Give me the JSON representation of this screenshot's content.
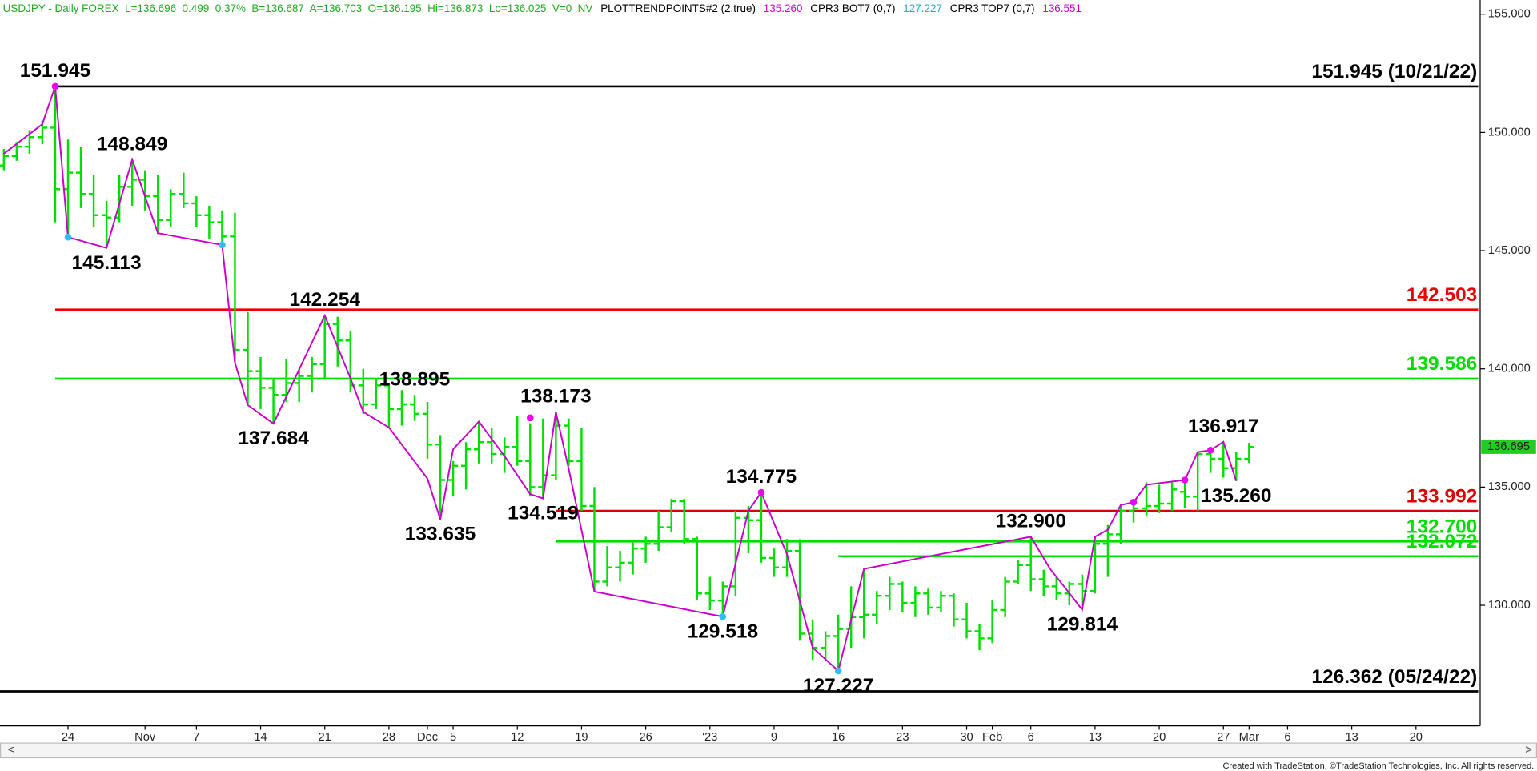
{
  "chart_data": {
    "type": "ohlc",
    "status": [
      {
        "text": "USDJPY - Daily FOREX  L=136.696  0.499  0.37%  B=136.687  A=136.703  O=136.195  Hi=136.873  Lo=136.025  V=0  NV",
        "color": "#22aa22"
      },
      {
        "text": "PLOTTRENDPOINTS#2 (2,true)",
        "color": "#000000"
      },
      {
        "text": "135.260",
        "color": "#cc00cc"
      },
      {
        "text": "CPR3 BOT7 (0,7)",
        "color": "#000000"
      },
      {
        "text": "127.227",
        "color": "#22aacc"
      },
      {
        "text": "CPR3 TOP7 (0,7)",
        "color": "#000000"
      },
      {
        "text": "136.551",
        "color": "#cc00cc"
      }
    ],
    "footer": "Created with TradeStation. ©TradeStation Technologies, Inc. All rights reserved.",
    "bar_color": "#00e000",
    "bars": {
      "open": [
        148.6,
        149.0,
        149.4,
        149.8,
        150.2,
        147.6,
        148.3,
        147.4,
        146.5,
        146.4,
        147.7,
        148.0,
        147.3,
        146.3,
        147.4,
        147.0,
        146.5,
        146.2,
        145.6,
        140.8,
        139.9,
        139.2,
        138.9,
        139.4,
        139.7,
        140.2,
        141.9,
        141.2,
        139.3,
        138.5,
        139.3,
        138.3,
        138.5,
        138.1,
        136.8,
        135.3,
        135.9,
        136.6,
        136.9,
        136.4,
        136.7,
        136.1,
        135.0,
        135.5,
        137.6,
        136.1,
        134.2,
        131.0,
        131.6,
        131.8,
        132.4,
        132.6,
        133.3,
        134.4,
        132.8,
        130.5,
        130.2,
        130.8,
        133.7,
        133.6,
        132.0,
        131.6,
        132.3,
        128.8,
        128.2,
        128.7,
        129.0,
        129.5,
        129.6,
        130.4,
        130.9,
        130.1,
        130.5,
        129.9,
        130.4,
        129.4,
        128.9,
        128.6,
        129.8,
        131.0,
        131.7,
        131.1,
        130.8,
        130.5,
        130.9,
        130.6,
        132.6,
        133.0,
        134.0,
        134.1,
        134.2,
        134.3,
        134.8,
        134.6,
        136.4,
        136.2,
        135.8,
        136.195
      ],
      "high": [
        149.3,
        149.6,
        150.1,
        150.5,
        151.945,
        149.7,
        149.4,
        148.2,
        147.1,
        148.2,
        148.849,
        148.4,
        148.2,
        147.6,
        148.3,
        147.3,
        146.9,
        146.7,
        146.6,
        142.4,
        140.5,
        139.6,
        140.4,
        140.0,
        140.5,
        142.254,
        142.2,
        141.6,
        140.0,
        139.6,
        139.4,
        139.1,
        138.895,
        138.6,
        137.2,
        136.1,
        136.9,
        137.8,
        137.5,
        137.1,
        138.0,
        137.7,
        137.9,
        138.173,
        137.9,
        137.5,
        135.0,
        132.5,
        132.3,
        132.7,
        132.9,
        134.0,
        134.5,
        134.5,
        132.9,
        131.2,
        131.0,
        134.0,
        134.2,
        134.775,
        132.4,
        132.8,
        132.8,
        129.4,
        128.9,
        129.6,
        130.8,
        131.54,
        130.6,
        131.2,
        131.0,
        130.8,
        130.7,
        130.6,
        130.5,
        130.1,
        129.2,
        130.2,
        131.2,
        131.9,
        132.9,
        131.5,
        131.2,
        131.0,
        131.3,
        132.9,
        133.4,
        134.2,
        134.4,
        135.2,
        135.1,
        135.2,
        135.3,
        136.5,
        136.6,
        136.917,
        136.5,
        136.873
      ],
      "low": [
        148.4,
        148.8,
        149.1,
        149.5,
        146.2,
        145.6,
        146.8,
        146.0,
        145.113,
        146.2,
        146.9,
        146.7,
        145.7,
        146.0,
        146.8,
        146.0,
        145.5,
        145.3,
        140.3,
        138.5,
        138.3,
        137.684,
        138.6,
        138.6,
        139.0,
        139.6,
        140.1,
        139.0,
        138.1,
        138.3,
        137.5,
        137.6,
        137.8,
        136.2,
        133.635,
        134.6,
        134.9,
        136.0,
        136.0,
        135.6,
        135.9,
        134.6,
        134.519,
        135.3,
        135.9,
        134.0,
        130.6,
        130.8,
        131.0,
        131.3,
        131.8,
        132.3,
        133.1,
        132.6,
        130.2,
        129.8,
        129.518,
        130.4,
        132.2,
        131.8,
        131.2,
        131.2,
        128.5,
        127.7,
        127.7,
        127.227,
        128.2,
        128.6,
        129.2,
        129.8,
        129.7,
        129.5,
        129.6,
        129.7,
        129.1,
        128.6,
        128.1,
        128.4,
        129.5,
        130.9,
        130.6,
        130.4,
        130.2,
        130.0,
        129.814,
        130.5,
        131.2,
        132.6,
        133.5,
        133.8,
        133.9,
        134.0,
        134.1,
        134.0,
        135.6,
        135.4,
        135.26,
        136.025
      ],
      "close": [
        149.0,
        149.4,
        149.8,
        150.2,
        147.6,
        148.3,
        147.4,
        146.5,
        146.4,
        147.7,
        148.0,
        147.3,
        146.3,
        147.4,
        147.0,
        146.5,
        146.2,
        145.6,
        140.8,
        139.9,
        139.2,
        138.9,
        139.4,
        139.7,
        140.2,
        141.9,
        141.2,
        139.3,
        138.5,
        139.3,
        138.3,
        138.5,
        138.1,
        136.8,
        135.3,
        135.9,
        136.6,
        136.9,
        136.4,
        136.7,
        136.1,
        135.0,
        135.5,
        137.6,
        136.1,
        134.2,
        131.0,
        131.6,
        131.8,
        132.4,
        132.6,
        133.3,
        134.4,
        132.8,
        130.5,
        130.2,
        130.8,
        133.7,
        133.6,
        132.0,
        131.6,
        132.3,
        128.8,
        128.2,
        128.7,
        129.0,
        129.5,
        129.6,
        130.4,
        130.9,
        130.1,
        130.5,
        129.9,
        130.4,
        129.4,
        128.9,
        128.6,
        129.8,
        131.0,
        131.7,
        131.1,
        130.8,
        130.5,
        130.9,
        130.6,
        132.6,
        133.0,
        134.0,
        134.1,
        134.2,
        134.3,
        134.9,
        134.6,
        136.4,
        136.2,
        135.8,
        136.2,
        136.696
      ]
    },
    "trend_line": {
      "color": "#cc00cc",
      "x": [
        0,
        3,
        4,
        5,
        8,
        10,
        12,
        17,
        18,
        19,
        21,
        25,
        27,
        28,
        30,
        33,
        34,
        35,
        37,
        39,
        41,
        42,
        43,
        44,
        46,
        56,
        58,
        59,
        61,
        63,
        65,
        67,
        80,
        81.5,
        82.6,
        84,
        85,
        86,
        87,
        88,
        89,
        92,
        93,
        94,
        95,
        96
      ],
      "values": [
        149.1,
        150.35,
        151.945,
        145.57,
        145.113,
        148.849,
        145.74,
        145.24,
        140.26,
        138.47,
        137.684,
        142.254,
        139.6,
        138.18,
        137.52,
        135.36,
        133.635,
        136.6,
        137.77,
        136.31,
        134.7,
        134.519,
        138.173,
        135.77,
        130.58,
        129.518,
        134.0,
        134.775,
        132.16,
        128.21,
        127.227,
        131.54,
        132.9,
        131.54,
        130.79,
        129.814,
        132.9,
        133.2,
        134.24,
        134.36,
        135.1,
        135.3,
        136.48,
        136.56,
        136.917,
        135.26
      ]
    },
    "markers": [
      {
        "x": 5,
        "value": 145.57,
        "color": "#33bbff"
      },
      {
        "x": 17,
        "value": 145.24,
        "color": "#33bbff"
      },
      {
        "x": 56,
        "value": 129.518,
        "color": "#33bbff"
      },
      {
        "x": 65,
        "value": 127.227,
        "color": "#33bbff"
      },
      {
        "x": 4,
        "value": 151.945,
        "color": "#ee00ee"
      },
      {
        "x": 41,
        "value": 137.93,
        "color": "#ee00ee"
      },
      {
        "x": 59,
        "value": 134.775,
        "color": "#ee00ee"
      },
      {
        "x": 88,
        "value": 134.36,
        "color": "#ee00ee"
      },
      {
        "x": 92,
        "value": 135.3,
        "color": "#ee00ee"
      },
      {
        "x": 94,
        "value": 136.56,
        "color": "#ee00ee"
      }
    ],
    "annotations": [
      {
        "x": 4,
        "value": 151.945
      },
      {
        "x": 10,
        "value": 148.849
      },
      {
        "x": 8,
        "value": 145.113
      },
      {
        "x": 25,
        "value": 142.254
      },
      {
        "x": 32,
        "value": 138.895
      },
      {
        "x": 21,
        "value": 137.684
      },
      {
        "x": 43,
        "value": 138.173
      },
      {
        "x": 34,
        "value": 133.635
      },
      {
        "x": 42,
        "value": 134.519
      },
      {
        "x": 59,
        "value": 134.775
      },
      {
        "x": 56,
        "value": 129.518
      },
      {
        "x": 65,
        "value": 127.227
      },
      {
        "x": 80,
        "value": 132.9,
        "label": "132.900"
      },
      {
        "x": 84,
        "value": 129.814
      },
      {
        "x": 95,
        "value": 136.917
      },
      {
        "x": 96,
        "value": 135.26,
        "label": "135.260"
      }
    ],
    "levels": [
      {
        "value": 151.945,
        "label": "151.945 (10/21/22)",
        "color": "#000000",
        "start": 4
      },
      {
        "value": 142.503,
        "color": "#ee0000",
        "start": 4
      },
      {
        "value": 139.586,
        "color": "#00dd00",
        "start": 4
      },
      {
        "value": 133.992,
        "color": "#dd0000",
        "start": 43
      },
      {
        "value": 132.7,
        "label": "132.700",
        "color": "#00dd00",
        "start": 43
      },
      {
        "value": 132.072,
        "color": "#00dd00",
        "start": 65
      },
      {
        "value": 126.362,
        "label": "126.362 (05/24/22)",
        "color": "#000000"
      }
    ],
    "last_price": {
      "value": 136.695,
      "color": "#22cc22"
    },
    "xlim": [
      -0.3,
      115
    ],
    "xticks": [
      {
        "value": 5,
        "label": "24"
      },
      {
        "value": 11,
        "label": "Nov"
      },
      {
        "value": 15,
        "label": "7"
      },
      {
        "value": 20,
        "label": "14"
      },
      {
        "value": 25,
        "label": "21"
      },
      {
        "value": 30,
        "label": "28"
      },
      {
        "value": 33,
        "label": "Dec"
      },
      {
        "value": 35,
        "label": "5"
      },
      {
        "value": 40,
        "label": "12"
      },
      {
        "value": 45,
        "label": "19"
      },
      {
        "value": 50,
        "label": "26"
      },
      {
        "value": 55,
        "label": "'23"
      },
      {
        "value": 60,
        "label": "9"
      },
      {
        "value": 65,
        "label": "16"
      },
      {
        "value": 70,
        "label": "23"
      },
      {
        "value": 75,
        "label": "30"
      },
      {
        "value": 77,
        "label": "Feb"
      },
      {
        "value": 80,
        "label": "6"
      },
      {
        "value": 85,
        "label": "13"
      },
      {
        "value": 90,
        "label": "20"
      },
      {
        "value": 95,
        "label": "27"
      },
      {
        "value": 97,
        "label": "Mar"
      },
      {
        "value": 100,
        "label": "6"
      },
      {
        "value": 105,
        "label": "13"
      },
      {
        "value": 110,
        "label": "20"
      }
    ],
    "ylim": [
      124.9,
      155.6
    ],
    "yticks": [
      {
        "value": 130,
        "label": "130.000"
      },
      {
        "value": 135,
        "label": "135.000"
      },
      {
        "value": 140,
        "label": "140.000"
      },
      {
        "value": 145,
        "label": "145.000"
      },
      {
        "value": 150,
        "label": "150.000"
      },
      {
        "value": 155,
        "label": "155.000"
      }
    ]
  }
}
